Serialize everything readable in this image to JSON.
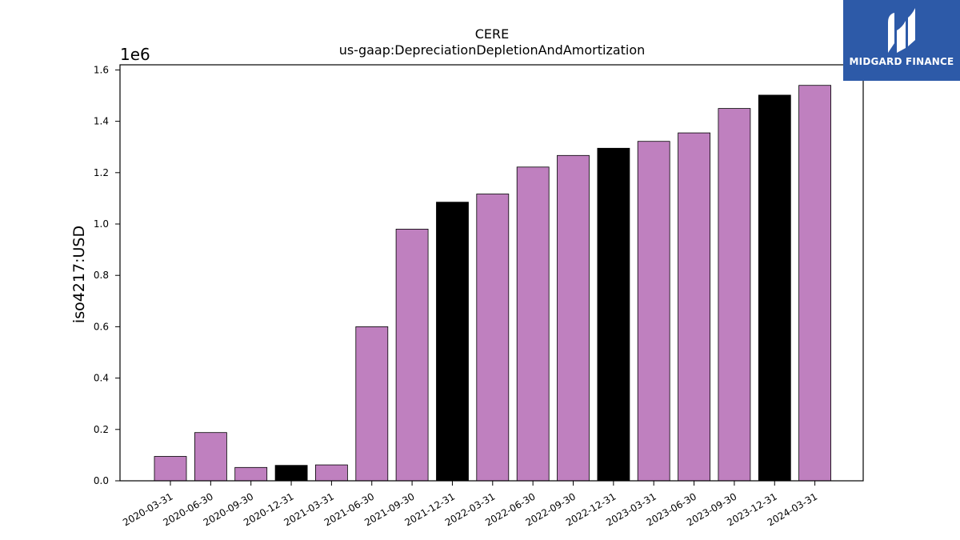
{
  "chart_data": {
    "type": "bar",
    "title": "CERE",
    "subtitle": "us-gaap:DepreciationDepletionAndAmortization",
    "xlabel": "",
    "ylabel": "iso4217:USD",
    "y_scale_label": "1e6",
    "ylim": [
      0,
      1.62
    ],
    "y_ticks": [
      0.0,
      0.2,
      0.4,
      0.6,
      0.8,
      1.0,
      1.2,
      1.4,
      1.6
    ],
    "y_tick_labels": [
      "0.0",
      "0.2",
      "0.4",
      "0.6",
      "0.8",
      "1.0",
      "1.2",
      "1.4",
      "1.6"
    ],
    "grid": false,
    "categories": [
      "2020-03-31",
      "2020-06-30",
      "2020-09-30",
      "2020-12-31",
      "2021-03-31",
      "2021-06-30",
      "2021-09-30",
      "2021-12-31",
      "2022-03-31",
      "2022-06-30",
      "2022-09-30",
      "2022-12-31",
      "2023-03-31",
      "2023-06-30",
      "2023-09-30",
      "2023-12-31",
      "2024-03-31"
    ],
    "values": [
      0.095,
      0.188,
      0.052,
      0.06,
      0.062,
      0.6,
      0.98,
      1.085,
      1.117,
      1.222,
      1.267,
      1.295,
      1.322,
      1.355,
      1.45,
      1.502,
      1.54
    ],
    "bar_colors": [
      "#bf80bf",
      "#bf80bf",
      "#bf80bf",
      "#000000",
      "#bf80bf",
      "#bf80bf",
      "#bf80bf",
      "#000000",
      "#bf80bf",
      "#bf80bf",
      "#bf80bf",
      "#000000",
      "#bf80bf",
      "#bf80bf",
      "#bf80bf",
      "#000000",
      "#bf80bf"
    ]
  },
  "logo": {
    "text": "MIDGARD FINANCE",
    "icon": "midgard-logo-icon",
    "background": "#2d5aa8"
  }
}
